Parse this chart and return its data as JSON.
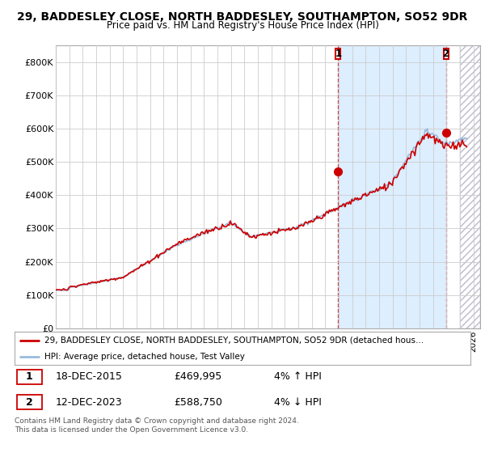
{
  "title_line1": "29, BADDESLEY CLOSE, NORTH BADDESLEY, SOUTHAMPTON, SO52 9DR",
  "title_line2": "Price paid vs. HM Land Registry's House Price Index (HPI)",
  "ylim": [
    0,
    850000
  ],
  "yticks": [
    0,
    100000,
    200000,
    300000,
    400000,
    500000,
    600000,
    700000,
    800000
  ],
  "ytick_labels": [
    "£0",
    "£100K",
    "£200K",
    "£300K",
    "£400K",
    "£500K",
    "£600K",
    "£700K",
    "£800K"
  ],
  "xlim_start": 1995,
  "xlim_end": 2026.5,
  "line_color_property": "#cc0000",
  "line_color_hpi": "#99bbdd",
  "marker1_year": 2015.96,
  "marker1_value": 469995,
  "marker2_year": 2023.96,
  "marker2_value": 588750,
  "vline_color": "#cc4444",
  "shade_color": "#ddeeff",
  "hatch_start": 2025.0,
  "legend_property_label": "29, BADDESLEY CLOSE, NORTH BADDESLEY, SOUTHAMPTON, SO52 9DR (detached hous…",
  "legend_hpi_label": "HPI: Average price, detached house, Test Valley",
  "table_row1": [
    "1",
    "18-DEC-2015",
    "£469,995",
    "4% ↑ HPI"
  ],
  "table_row2": [
    "2",
    "12-DEC-2023",
    "£588,750",
    "4% ↓ HPI"
  ],
  "footnote": "Contains HM Land Registry data © Crown copyright and database right 2024.\nThis data is licensed under the Open Government Licence v3.0.",
  "grid_color": "#cccccc",
  "bg_color": "#ffffff",
  "plot_bg": "#ffffff"
}
